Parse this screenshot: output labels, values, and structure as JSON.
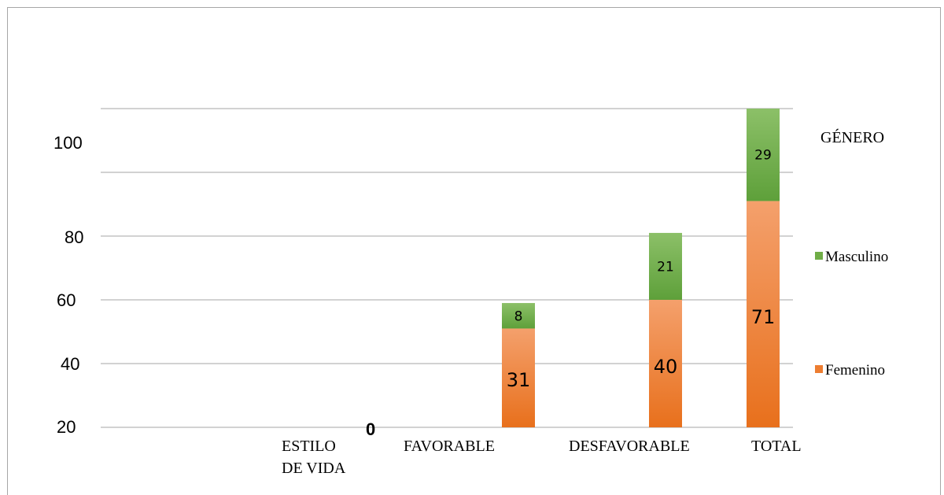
{
  "chart_data": {
    "type": "bar",
    "stacked": true,
    "categories": [
      "ESTILO DE VIDA",
      "FAVORABLE",
      "DESFAVORABLE",
      "TOTAL"
    ],
    "category_lines": [
      [
        "ESTILO",
        "DE VIDA"
      ],
      [
        "FAVORABLE"
      ],
      [
        "DESFAVORABLE"
      ],
      [
        "TOTAL"
      ]
    ],
    "series": [
      {
        "name": "Femenino",
        "values": [
          0,
          31,
          40,
          71
        ],
        "color": "#ed7d31"
      },
      {
        "name": "Masculino",
        "values": [
          0,
          8,
          21,
          29
        ],
        "color": "#70ad47"
      }
    ],
    "y_tick_labels": [
      "20",
      "40",
      "60",
      "80",
      "100"
    ],
    "grid": true,
    "legend_title": "GÉNERO",
    "legend_placement": "right",
    "zero_label": "0"
  }
}
